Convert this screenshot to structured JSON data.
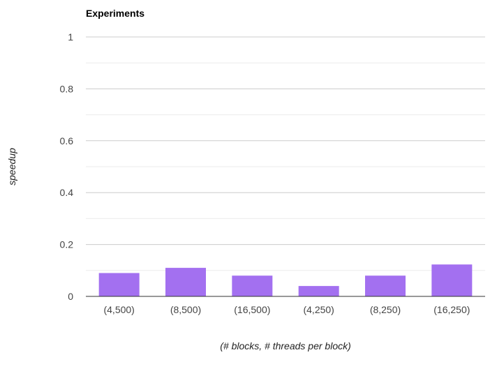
{
  "chart_data": {
    "type": "bar",
    "title": "Experiments",
    "xlabel": "(# blocks, # threads per block)",
    "ylabel": "speedup",
    "categories": [
      "(4,500)",
      "(8,500)",
      "(16,500)",
      "(4,250)",
      "(8,250)",
      "(16,250)"
    ],
    "values": [
      0.09,
      0.11,
      0.08,
      0.04,
      0.08,
      0.123
    ],
    "ylim": [
      0,
      1
    ],
    "yticks": [
      0,
      0.2,
      0.4,
      0.6,
      0.8,
      1
    ],
    "ytick_labels": [
      "0",
      "0.2",
      "0.4",
      "0.6",
      "0.8",
      "1"
    ],
    "grid": true,
    "minor_grid": true,
    "legend": "none",
    "colors": {
      "bar": "#a370f0",
      "major_grid": "#cccccc",
      "minor_grid": "#ebebeb",
      "baseline": "#333333"
    }
  }
}
